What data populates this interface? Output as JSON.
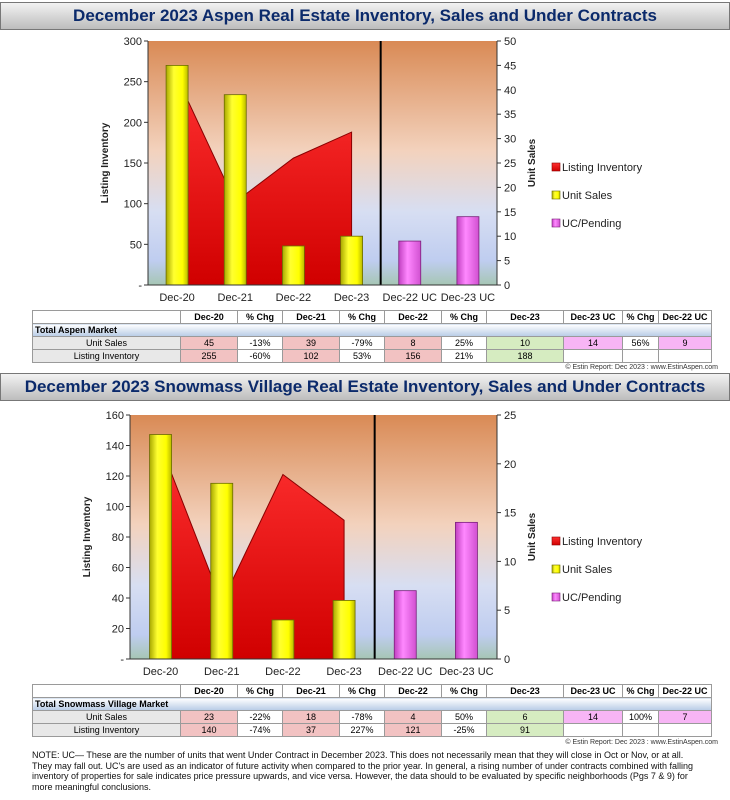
{
  "charts": [
    {
      "title": "December 2023 Aspen Real Estate Inventory, Sales and Under Contracts",
      "copyright": "© Estin Report: Dec 2023 : www.EstinAspen.com",
      "chart_data": {
        "type": "bar",
        "categories": [
          "Dec-20",
          "Dec-21",
          "Dec-22",
          "Dec-23",
          "Dec-22 UC",
          "Dec-23 UC"
        ],
        "ylabel": "Listing Inventory",
        "y2label": "Unit Sales",
        "ylim": [
          0,
          300
        ],
        "yticks": [
          "300",
          "250",
          "200",
          "150",
          "100",
          "50",
          "-"
        ],
        "y2lim": [
          0,
          50
        ],
        "y2ticks": [
          "50",
          "45",
          "40",
          "35",
          "30",
          "25",
          "20",
          "15",
          "10",
          "5",
          "0"
        ],
        "series": [
          {
            "name": "Listing Inventory",
            "type": "area",
            "axis": "left",
            "color": "#e01010",
            "values": [
              255,
              102,
              156,
              188,
              null,
              null
            ]
          },
          {
            "name": "Unit Sales",
            "type": "bar",
            "axis": "right",
            "color": "#ffff00",
            "values": [
              45,
              39,
              8,
              10,
              null,
              null
            ]
          },
          {
            "name": "UC/Pending",
            "type": "bar",
            "axis": "right",
            "color": "#ff66ff",
            "values": [
              null,
              null,
              null,
              null,
              9,
              14
            ]
          }
        ],
        "legend_position": "right"
      },
      "table": {
        "headers": [
          "Dec-20",
          "% Chg",
          "Dec-21",
          "% Chg",
          "Dec-22",
          "% Chg",
          "Dec-23",
          "Dec-23 UC",
          "% Chg",
          "Dec-22 UC"
        ],
        "market": "Total Aspen Market",
        "rows": [
          {
            "label": "Unit Sales",
            "cells": [
              "45",
              "-13%",
              "39",
              "-79%",
              "8",
              "25%",
              "10",
              "14",
              "56%",
              "9"
            ]
          },
          {
            "label": "Listing Inventory",
            "cells": [
              "255",
              "-60%",
              "102",
              "53%",
              "156",
              "21%",
              "188",
              "",
              "",
              ""
            ]
          }
        ]
      }
    },
    {
      "title": "December 2023 Snowmass Village Real Estate Inventory, Sales and Under Contracts",
      "copyright": "© Estin Report: Dec 2023 : www.EstinAspen.com",
      "chart_data": {
        "type": "bar",
        "categories": [
          "Dec-20",
          "Dec-21",
          "Dec-22",
          "Dec-23",
          "Dec-22 UC",
          "Dec-23 UC"
        ],
        "ylabel": "Listing Inventory",
        "y2label": "Unit Sales",
        "ylim": [
          0,
          160
        ],
        "yticks": [
          "160",
          "140",
          "120",
          "100",
          "80",
          "60",
          "40",
          "20",
          "-"
        ],
        "y2lim": [
          0,
          25
        ],
        "y2ticks": [
          "25",
          "20",
          "15",
          "10",
          "5",
          "0"
        ],
        "series": [
          {
            "name": "Listing Inventory",
            "type": "area",
            "axis": "left",
            "color": "#e01010",
            "values": [
              140,
              37,
              121,
              91,
              null,
              null
            ]
          },
          {
            "name": "Unit Sales",
            "type": "bar",
            "axis": "right",
            "color": "#ffff00",
            "values": [
              23,
              18,
              4,
              6,
              null,
              null
            ]
          },
          {
            "name": "UC/Pending",
            "type": "bar",
            "axis": "right",
            "color": "#ff66ff",
            "values": [
              null,
              null,
              null,
              null,
              7,
              14
            ]
          }
        ],
        "legend_position": "right"
      },
      "table": {
        "headers": [
          "Dec-20",
          "% Chg",
          "Dec-21",
          "% Chg",
          "Dec-22",
          "% Chg",
          "Dec-23",
          "Dec-23 UC",
          "% Chg",
          "Dec-22 UC"
        ],
        "market": "Total Snowmass Village Market",
        "rows": [
          {
            "label": "Unit Sales",
            "cells": [
              "23",
              "-22%",
              "18",
              "-78%",
              "4",
              "50%",
              "6",
              "14",
              "100%",
              "7"
            ]
          },
          {
            "label": "Listing Inventory",
            "cells": [
              "140",
              "-74%",
              "37",
              "227%",
              "121",
              "-25%",
              "91",
              "",
              "",
              ""
            ]
          }
        ]
      }
    }
  ],
  "note": "NOTE: UC— These are the number of units that went Under Contract in December 2023. This does not necessarily mean that they will close in Oct or Nov, or at all. They may fall out. UC's are used as an indicator of future activity when compared to the prior year. In general, a rising number of under contracts combined with falling inventory of properties for sale indicates price pressure upwards, and vice versa. However, the data should to be evaluated by specific neighborhoods (Pgs 7 & 9) for more meaningful conclusions.",
  "colors": {
    "title": "#0b2a6b",
    "inventory": "#e01010",
    "sales": "#ffff00",
    "uc": "#ff66ff"
  }
}
